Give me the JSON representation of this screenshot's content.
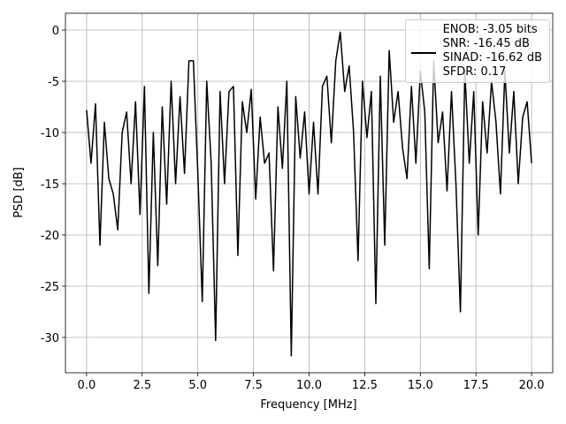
{
  "chart_data": {
    "type": "line",
    "xlabel": "Frequency [MHz]",
    "ylabel": "PSD [dB]",
    "x": [
      0,
      0.2,
      0.4,
      0.6,
      0.8,
      1.0,
      1.2,
      1.4,
      1.6,
      1.8,
      2.0,
      2.2,
      2.4,
      2.6,
      2.8,
      3.0,
      3.2,
      3.4,
      3.6,
      3.8,
      4.0,
      4.2,
      4.4,
      4.6,
      4.8,
      5.0,
      5.2,
      5.4,
      5.6,
      5.8,
      6.0,
      6.2,
      6.4,
      6.6,
      6.8,
      7.0,
      7.2,
      7.4,
      7.6,
      7.8,
      8.0,
      8.2,
      8.4,
      8.6,
      8.8,
      9.0,
      9.2,
      9.4,
      9.6,
      9.8,
      10.0,
      10.2,
      10.4,
      10.6,
      10.8,
      11.0,
      11.2,
      11.4,
      11.6,
      11.8,
      12.0,
      12.2,
      12.4,
      12.6,
      12.8,
      13.0,
      13.2,
      13.4,
      13.6,
      13.8,
      14.0,
      14.2,
      14.4,
      14.6,
      14.8,
      15.0,
      15.2,
      15.4,
      15.6,
      15.8,
      16.0,
      16.2,
      16.4,
      16.6,
      16.8,
      17.0,
      17.2,
      17.4,
      17.6,
      17.8,
      18.0,
      18.2,
      18.4,
      18.6,
      18.8,
      19.0,
      19.2,
      19.4,
      19.6,
      19.8,
      20.0
    ],
    "series": [
      {
        "name": "ENOB: -3.05 bits\nSNR: -16.45 dB\nSINAD: -16.62 dB\nSFDR: 0.17",
        "color": "#000000",
        "values": [
          -7.8,
          -13,
          -7.2,
          -21,
          -9,
          -14.5,
          -16,
          -19.5,
          -10,
          -8,
          -15,
          -7,
          -18,
          -5.5,
          -25.7,
          -10,
          -23,
          -7.5,
          -17,
          -5,
          -15,
          -6.5,
          -14,
          -3,
          -3,
          -14,
          -26.5,
          -5,
          -13,
          -30.3,
          -6,
          -15,
          -6,
          -5.5,
          -22,
          -7,
          -10,
          -5.8,
          -16.5,
          -8.5,
          -13,
          -12,
          -23.5,
          -7.5,
          -13.5,
          -5,
          -31.8,
          -6.5,
          -12.5,
          -8,
          -16,
          -9,
          -16,
          -5.5,
          -4.5,
          -11,
          -3,
          -0.2,
          -6,
          -3.5,
          -10,
          -22.5,
          -5,
          -10.5,
          -6,
          -26.7,
          -4.5,
          -21,
          -2,
          -9,
          -6,
          -11.5,
          -14.5,
          -5.5,
          -13,
          -4,
          -8,
          -23.3,
          -3,
          -11,
          -8,
          -15.7,
          -6,
          -15,
          -27.5,
          -4,
          -13,
          -6,
          -20,
          -7,
          -12,
          -5,
          -9,
          -16,
          -4,
          -12,
          -6,
          -15,
          -8.5,
          -7,
          -13
        ]
      }
    ],
    "xlim": [
      -0.95,
      20.95
    ],
    "ylim": [
      -33.45,
      1.64
    ],
    "xticks": [
      {
        "value": 0,
        "label": "0.0"
      },
      2.5,
      {
        "value": 5,
        "label": "5.0"
      },
      7.5,
      {
        "value": 10,
        "label": "10.0"
      },
      12.5,
      {
        "value": 15,
        "label": "15.0"
      },
      17.5,
      {
        "value": 20,
        "label": "20.0"
      }
    ],
    "yticks": [
      0,
      -5,
      -10,
      -15,
      -20,
      -25,
      -30
    ],
    "grid": true,
    "legend": "upper right"
  }
}
